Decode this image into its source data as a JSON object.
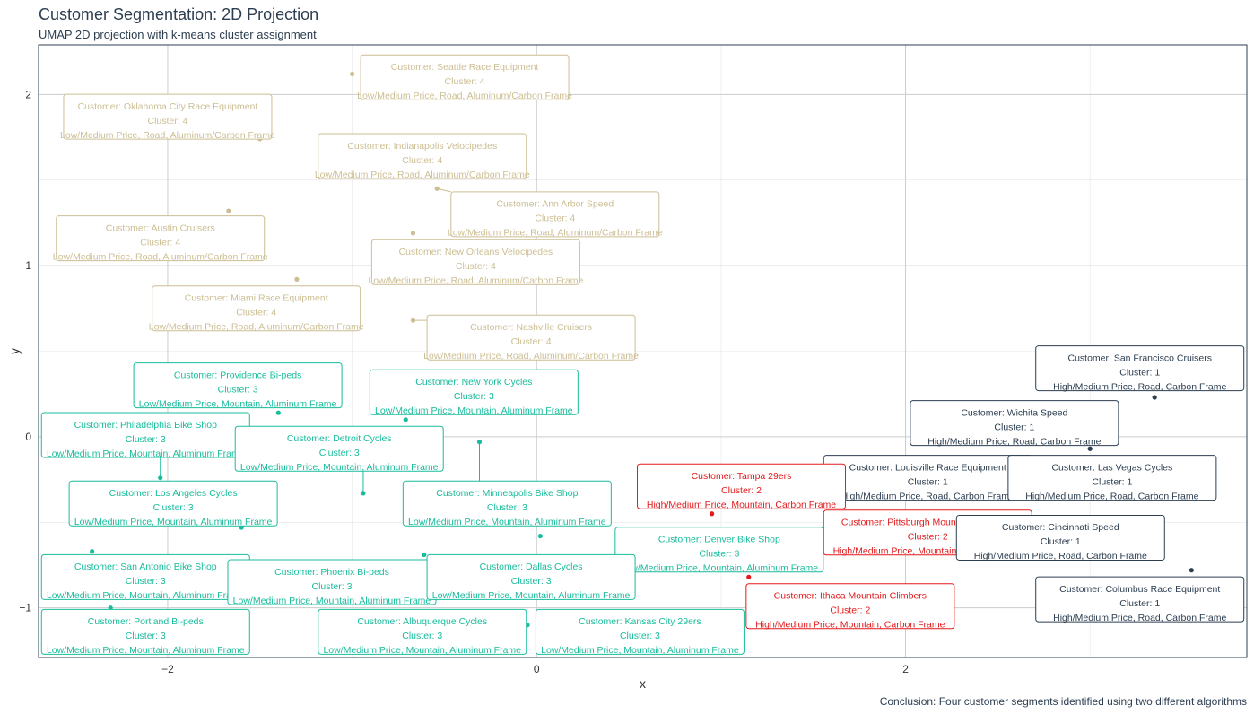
{
  "title": "Customer Segmentation: 2D Projection",
  "subtitle": "UMAP 2D projection with k-means cluster assignment",
  "caption": "Conclusion: Four customer segments identified using two different algorithms",
  "colors": {
    "1": "#2c3e50",
    "2": "#e31a1c",
    "3": "#18bc9c",
    "4": "#ccbe93"
  },
  "chart_data": {
    "type": "scatter",
    "xlabel": "x",
    "ylabel": "y",
    "xlim": [
      -2.7,
      3.85
    ],
    "ylim": [
      -1.29,
      2.29
    ],
    "xticks": [
      -2,
      0,
      2
    ],
    "yticks": [
      -1,
      0,
      1,
      2
    ],
    "grid": true,
    "points": [
      {
        "x": -1.0,
        "y": 2.12,
        "cluster": "4",
        "customer": "Seattle Race Equipment",
        "desc": "Low/Medium Price, Road, Aluminum/Carbon Frame"
      },
      {
        "x": -1.5,
        "y": 1.74,
        "cluster": "4",
        "customer": "Oklahoma City Race Equipment",
        "desc": "Low/Medium Price, Road, Aluminum/Carbon Frame"
      },
      {
        "x": -1.1,
        "y": 1.52,
        "cluster": "4",
        "customer": "Indianapolis Velocipedes",
        "desc": "Low/Medium Price, Road, Aluminum/Carbon Frame"
      },
      {
        "x": -0.54,
        "y": 1.45,
        "cluster": "4",
        "customer": "Ann Arbor Speed",
        "desc": "Low/Medium Price, Road, Aluminum/Carbon Frame"
      },
      {
        "x": -1.67,
        "y": 1.32,
        "cluster": "4",
        "customer": "Austin Cruisers",
        "desc": "Low/Medium Price, Road, Aluminum/Carbon Frame"
      },
      {
        "x": -0.67,
        "y": 1.19,
        "cluster": "4",
        "customer": "New Orleans Velocipedes",
        "desc": "Low/Medium Price, Road, Aluminum/Carbon Frame"
      },
      {
        "x": -1.3,
        "y": 0.92,
        "cluster": "4",
        "customer": "Miami Race Equipment",
        "desc": "Low/Medium Price, Road, Aluminum/Carbon Frame"
      },
      {
        "x": -0.67,
        "y": 0.68,
        "cluster": "4",
        "customer": "Nashville Cruisers",
        "desc": "Low/Medium Price, Road, Aluminum/Carbon Frame"
      },
      {
        "x": 3.35,
        "y": 0.23,
        "cluster": "1",
        "customer": "San Francisco Cruisers",
        "desc": "High/Medium Price, Road, Carbon Frame"
      },
      {
        "x": -1.4,
        "y": 0.14,
        "cluster": "3",
        "customer": "Providence Bi-peds",
        "desc": "Low/Medium Price, Mountain, Aluminum Frame"
      },
      {
        "x": -0.71,
        "y": 0.1,
        "cluster": "3",
        "customer": "New York Cycles",
        "desc": "Low/Medium Price, Mountain, Aluminum Frame"
      },
      {
        "x": 3.0,
        "y": -0.07,
        "cluster": "1",
        "customer": "Wichita Speed",
        "desc": "High/Medium Price, Road, Carbon Frame"
      },
      {
        "x": -0.31,
        "y": -0.03,
        "cluster": "3",
        "customer": "Minneapolis Bike Shop",
        "desc": "Low/Medium Price, Mountain, Aluminum Frame"
      },
      {
        "x": -2.04,
        "y": -0.24,
        "cluster": "3",
        "customer": "Philadelphia Bike Shop",
        "desc": "Low/Medium Price, Mountain, Aluminum Frame"
      },
      {
        "x": -0.94,
        "y": -0.33,
        "cluster": "3",
        "customer": "Detroit Cycles",
        "desc": "Low/Medium Price, Mountain, Aluminum Frame"
      },
      {
        "x": 2.5,
        "y": -0.3,
        "cluster": "1",
        "customer": "Louisville Race Equipment",
        "desc": "High/Medium Price, Road, Carbon Frame"
      },
      {
        "x": 2.8,
        "y": -0.33,
        "cluster": "1",
        "customer": "Las Vegas Cycles",
        "desc": "High/Medium Price, Road, Carbon Frame"
      },
      {
        "x": 0.95,
        "y": -0.45,
        "cluster": "2",
        "customer": "Tampa 29ers",
        "desc": "High/Medium Price, Mountain, Carbon Frame"
      },
      {
        "x": -1.6,
        "y": -0.53,
        "cluster": "3",
        "customer": "Los Angeles Cycles",
        "desc": "Low/Medium Price, Mountain, Aluminum Frame"
      },
      {
        "x": 0.02,
        "y": -0.58,
        "cluster": "3",
        "customer": "Denver Bike Shop",
        "desc": "Low/Medium Price, Mountain, Aluminum Frame"
      },
      {
        "x": 1.62,
        "y": -0.6,
        "cluster": "2",
        "customer": "Pittsburgh Mountain Machines",
        "desc": "High/Medium Price, Mountain, Carbon Frame"
      },
      {
        "x": 2.55,
        "y": -0.65,
        "cluster": "1",
        "customer": "Cincinnati Speed",
        "desc": "High/Medium Price, Road, Carbon Frame"
      },
      {
        "x": -2.41,
        "y": -0.67,
        "cluster": "3",
        "customer": "San Antonio Bike Shop",
        "desc": "Low/Medium Price, Mountain, Aluminum Frame"
      },
      {
        "x": -0.61,
        "y": -0.69,
        "cluster": "3",
        "customer": "Phoenix Bi-peds",
        "desc": "Low/Medium Price, Mountain, Aluminum Frame"
      },
      {
        "x": -0.35,
        "y": -0.72,
        "cluster": "3",
        "customer": "Dallas Cycles",
        "desc": "Low/Medium Price, Mountain, Aluminum Frame"
      },
      {
        "x": 3.55,
        "y": -0.78,
        "cluster": "1",
        "customer": "Columbus Race Equipment",
        "desc": "High/Medium Price, Road, Carbon Frame"
      },
      {
        "x": 1.15,
        "y": -0.82,
        "cluster": "2",
        "customer": "Ithaca Mountain Climbers",
        "desc": "High/Medium Price, Mountain, Carbon Frame"
      },
      {
        "x": -2.31,
        "y": -1.0,
        "cluster": "3",
        "customer": "Portland Bi-peds",
        "desc": "Low/Medium Price, Mountain, Aluminum Frame"
      },
      {
        "x": -0.46,
        "y": -1.1,
        "cluster": "3",
        "customer": "Albuquerque Cycles",
        "desc": "Low/Medium Price, Mountain, Aluminum Frame"
      },
      {
        "x": -0.05,
        "y": -1.1,
        "cluster": "3",
        "customer": "Kansas City 29ers",
        "desc": "Low/Medium Price, Mountain, Aluminum Frame"
      }
    ],
    "labels": [
      {
        "x": -0.39,
        "y": 2.1,
        "cluster": "4",
        "customer": "Seattle Race Equipment",
        "desc": "Low/Medium Price, Road, Aluminum/Carbon Frame"
      },
      {
        "x": -2.0,
        "y": 1.87,
        "cluster": "4",
        "customer": "Oklahoma City Race Equipment",
        "desc": "Low/Medium Price, Road, Aluminum/Carbon Frame"
      },
      {
        "x": -0.62,
        "y": 1.64,
        "cluster": "4",
        "customer": "Indianapolis Velocipedes",
        "desc": "Low/Medium Price, Road, Aluminum/Carbon Frame"
      },
      {
        "x": 0.1,
        "y": 1.3,
        "cluster": "4",
        "customer": "Ann Arbor Speed",
        "desc": "Low/Medium Price, Road, Aluminum/Carbon Frame"
      },
      {
        "x": -2.04,
        "y": 1.16,
        "cluster": "4",
        "customer": "Austin Cruisers",
        "desc": "Low/Medium Price, Road, Aluminum/Carbon Frame"
      },
      {
        "x": -0.33,
        "y": 1.02,
        "cluster": "4",
        "customer": "New Orleans Velocipedes",
        "desc": "Low/Medium Price, Road, Aluminum/Carbon Frame"
      },
      {
        "x": -1.52,
        "y": 0.75,
        "cluster": "4",
        "customer": "Miami Race Equipment",
        "desc": "Low/Medium Price, Road, Aluminum/Carbon Frame"
      },
      {
        "x": -0.03,
        "y": 0.58,
        "cluster": "4",
        "customer": "Nashville Cruisers",
        "desc": "Low/Medium Price, Road, Aluminum/Carbon Frame"
      },
      {
        "x": 3.27,
        "y": 0.4,
        "cluster": "1",
        "customer": "San Francisco Cruisers",
        "desc": "High/Medium Price, Road, Carbon Frame"
      },
      {
        "x": -1.62,
        "y": 0.3,
        "cluster": "3",
        "customer": "Providence Bi-peds",
        "desc": "Low/Medium Price, Mountain, Aluminum Frame"
      },
      {
        "x": -0.34,
        "y": 0.26,
        "cluster": "3",
        "customer": "New York Cycles",
        "desc": "Low/Medium Price, Mountain, Aluminum Frame"
      },
      {
        "x": 2.59,
        "y": 0.08,
        "cluster": "1",
        "customer": "Wichita Speed",
        "desc": "High/Medium Price, Road, Carbon Frame"
      },
      {
        "x": -2.12,
        "y": 0.01,
        "cluster": "3",
        "customer": "Philadelphia Bike Shop",
        "desc": "Low/Medium Price, Mountain, Aluminum Frame"
      },
      {
        "x": -1.07,
        "y": -0.07,
        "cluster": "3",
        "customer": "Detroit Cycles",
        "desc": "Low/Medium Price, Mountain, Aluminum Frame"
      },
      {
        "x": 2.12,
        "y": -0.24,
        "cluster": "1",
        "customer": "Louisville Race Equipment",
        "desc": "High/Medium Price, Road, Carbon Frame"
      },
      {
        "x": 3.12,
        "y": -0.24,
        "cluster": "1",
        "customer": "Las Vegas Cycles",
        "desc": "High/Medium Price, Road, Carbon Frame"
      },
      {
        "x": 1.11,
        "y": -0.29,
        "cluster": "2",
        "customer": "Tampa 29ers",
        "desc": "High/Medium Price, Mountain, Carbon Frame"
      },
      {
        "x": -1.97,
        "y": -0.39,
        "cluster": "3",
        "customer": "Los Angeles Cycles",
        "desc": "Low/Medium Price, Mountain, Aluminum Frame"
      },
      {
        "x": -0.16,
        "y": -0.39,
        "cluster": "3",
        "customer": "Minneapolis Bike Shop",
        "desc": "Low/Medium Price, Mountain, Aluminum Frame"
      },
      {
        "x": 0.99,
        "y": -0.66,
        "cluster": "3",
        "customer": "Denver Bike Shop",
        "desc": "Low/Medium Price, Mountain, Aluminum Frame"
      },
      {
        "x": 2.12,
        "y": -0.56,
        "cluster": "2",
        "customer": "Pittsburgh Mountain Machines",
        "desc": "High/Medium Price, Mountain, Carbon Frame"
      },
      {
        "x": 2.84,
        "y": -0.59,
        "cluster": "1",
        "customer": "Cincinnati Speed",
        "desc": "High/Medium Price, Road, Carbon Frame"
      },
      {
        "x": -2.12,
        "y": -0.82,
        "cluster": "3",
        "customer": "San Antonio Bike Shop",
        "desc": "Low/Medium Price, Mountain, Aluminum Frame"
      },
      {
        "x": -1.11,
        "y": -0.85,
        "cluster": "3",
        "customer": "Phoenix Bi-peds",
        "desc": "Low/Medium Price, Mountain, Aluminum Frame"
      },
      {
        "x": -0.03,
        "y": -0.82,
        "cluster": "3",
        "customer": "Dallas Cycles",
        "desc": "Low/Medium Price, Mountain, Aluminum Frame"
      },
      {
        "x": 3.27,
        "y": -0.95,
        "cluster": "1",
        "customer": "Columbus Race Equipment",
        "desc": "High/Medium Price, Road, Carbon Frame"
      },
      {
        "x": 1.7,
        "y": -0.99,
        "cluster": "2",
        "customer": "Ithaca Mountain Climbers",
        "desc": "High/Medium Price, Mountain, Carbon Frame"
      },
      {
        "x": -2.12,
        "y": -1.14,
        "cluster": "3",
        "customer": "Portland Bi-peds",
        "desc": "Low/Medium Price, Mountain, Aluminum Frame"
      },
      {
        "x": -0.62,
        "y": -1.14,
        "cluster": "3",
        "customer": "Albuquerque Cycles",
        "desc": "Low/Medium Price, Mountain, Aluminum Frame"
      },
      {
        "x": 0.56,
        "y": -1.14,
        "cluster": "3",
        "customer": "Kansas City 29ers",
        "desc": "Low/Medium Price, Mountain, Aluminum Frame"
      }
    ],
    "label_prefix": "Customer: ",
    "cluster_prefix": "Cluster: "
  }
}
